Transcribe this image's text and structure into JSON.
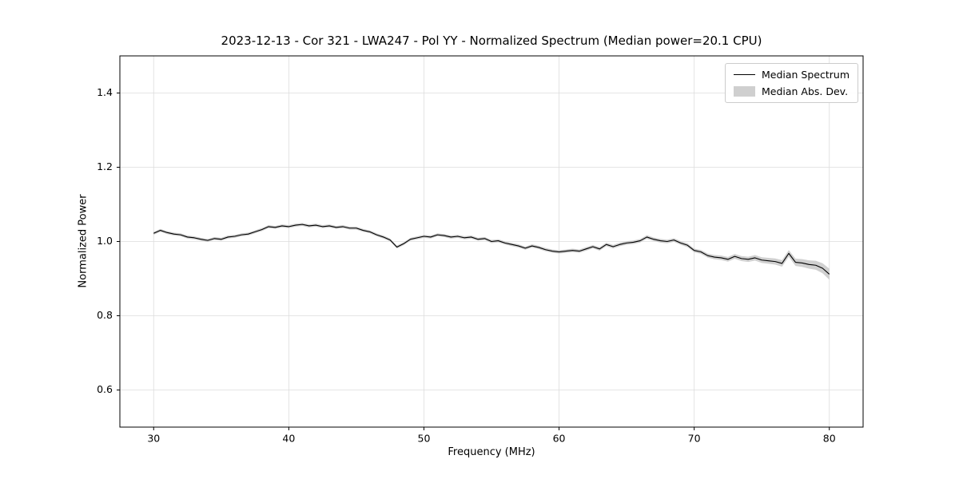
{
  "chart_data": {
    "type": "line",
    "title": "2023-12-13 - Cor 321 - LWA247 - Pol YY - Normalized Spectrum (Median power=20.1 CPU)",
    "xlabel": "Frequency (MHz)",
    "ylabel": "Normalized Power",
    "xlim": [
      27.5,
      82.5
    ],
    "ylim": [
      0.5,
      1.5
    ],
    "xticks": [
      30,
      40,
      50,
      60,
      70,
      80
    ],
    "yticks": [
      0.6,
      0.8,
      1.0,
      1.2,
      1.4
    ],
    "grid": true,
    "grid_color": "#dddddd",
    "spine_color": "#000000",
    "legend_position": "upper right",
    "series": [
      {
        "name": "Median Spectrum",
        "type": "line",
        "color": "#000000",
        "x": [
          30,
          30.5,
          31,
          31.5,
          32,
          32.5,
          33,
          33.5,
          34,
          34.5,
          35,
          35.5,
          36,
          36.5,
          37,
          37.5,
          38,
          38.5,
          39,
          39.5,
          40,
          40.5,
          41,
          41.5,
          42,
          42.5,
          43,
          43.5,
          44,
          44.5,
          45,
          45.5,
          46,
          46.5,
          47,
          47.5,
          48,
          48.5,
          49,
          49.5,
          50,
          50.5,
          51,
          51.5,
          52,
          52.5,
          53,
          53.5,
          54,
          54.5,
          55,
          55.5,
          56,
          56.5,
          57,
          57.5,
          58,
          58.5,
          59,
          59.5,
          60,
          60.5,
          61,
          61.5,
          62,
          62.5,
          63,
          63.5,
          64,
          64.5,
          65,
          65.5,
          66,
          66.5,
          67,
          67.5,
          68,
          68.5,
          69,
          69.5,
          70,
          70.5,
          71,
          71.5,
          72,
          72.5,
          73,
          73.5,
          74,
          74.5,
          75,
          75.5,
          76,
          76.5,
          77,
          77.5,
          78,
          78.5,
          79,
          79.5,
          80
        ],
        "y": [
          1.022,
          1.03,
          1.024,
          1.02,
          1.018,
          1.012,
          1.01,
          1.006,
          1.003,
          1.008,
          1.006,
          1.012,
          1.014,
          1.018,
          1.02,
          1.026,
          1.032,
          1.04,
          1.038,
          1.042,
          1.04,
          1.044,
          1.046,
          1.042,
          1.044,
          1.04,
          1.042,
          1.038,
          1.04,
          1.036,
          1.036,
          1.03,
          1.026,
          1.018,
          1.012,
          1.004,
          0.985,
          0.994,
          1.006,
          1.01,
          1.014,
          1.012,
          1.018,
          1.016,
          1.012,
          1.014,
          1.01,
          1.012,
          1.006,
          1.008,
          1.0,
          1.002,
          0.996,
          0.992,
          0.988,
          0.982,
          0.988,
          0.984,
          0.978,
          0.974,
          0.972,
          0.974,
          0.976,
          0.974,
          0.98,
          0.986,
          0.98,
          0.992,
          0.986,
          0.992,
          0.996,
          0.998,
          1.002,
          1.012,
          1.006,
          1.002,
          1.0,
          1.004,
          0.996,
          0.99,
          0.976,
          0.972,
          0.962,
          0.958,
          0.956,
          0.952,
          0.96,
          0.954,
          0.952,
          0.956,
          0.95,
          0.948,
          0.946,
          0.941,
          0.968,
          0.944,
          0.942,
          0.938,
          0.936,
          0.928,
          0.912
        ]
      },
      {
        "name": "Median Abs. Dev.",
        "type": "band",
        "color": "#c8c8c8",
        "around_series": "Median Spectrum",
        "halfwidth_x": [
          30,
          50,
          70,
          74,
          77,
          79,
          80
        ],
        "halfwidth": [
          0.004,
          0.004,
          0.005,
          0.007,
          0.009,
          0.012,
          0.015
        ]
      }
    ]
  }
}
